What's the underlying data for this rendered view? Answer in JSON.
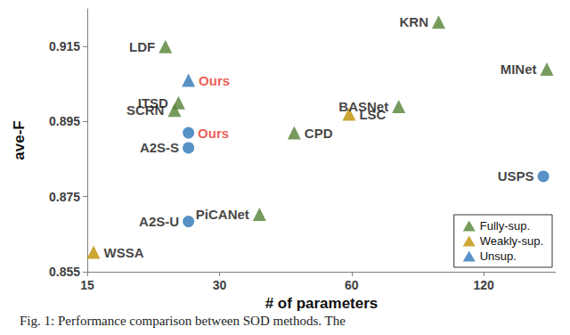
{
  "chart_data": {
    "type": "scatter",
    "xlabel": "# of parameters",
    "ylabel": "ave-F",
    "caption": "Fig. 1: Performance comparison between SOD methods. The",
    "log": "x",
    "grid": false,
    "legend": "lower right",
    "xlim": [
      15,
      175
    ],
    "xticks": [
      15,
      30,
      60,
      120
    ],
    "ylim": [
      0.855,
      0.925
    ],
    "yticks": [
      0.855,
      0.875,
      0.895,
      0.915
    ],
    "series": [
      {
        "name": "Fully-sup.",
        "color": "#548235",
        "marker": "triangle",
        "labels": [
          "KRN",
          "LDF",
          "MINet",
          "ITSD",
          "SCRN",
          "BASNet",
          "CPD",
          "PiCANet"
        ],
        "x": [
          94.7,
          22.6,
          167,
          24.2,
          23.7,
          76.8,
          44.4,
          37.0
        ],
        "values": [
          0.9215,
          0.915,
          0.909,
          0.9,
          0.898,
          0.899,
          0.892,
          0.8703
        ]
      },
      {
        "name": "Weakly-sup.",
        "color": "#bf9000",
        "marker": "triangle",
        "labels": [
          "LSC",
          "WSSA"
        ],
        "x": [
          59.2,
          15.5
        ],
        "values": [
          0.897,
          0.8602
        ]
      },
      {
        "name": "Unsup.",
        "color": "#2e75b6",
        "marker": "triangle",
        "labels": [
          "Ours"
        ],
        "x": [
          25.5
        ],
        "values": [
          0.906
        ]
      },
      {
        "color": "#2e75b6",
        "marker": "circle",
        "labels": [
          "Ours",
          "A2S-S",
          "A2S-U",
          "USPS"
        ],
        "x": [
          25.5,
          25.5,
          25.5,
          164
        ],
        "values": [
          0.892,
          0.888,
          0.8684,
          0.8804
        ]
      }
    ]
  }
}
